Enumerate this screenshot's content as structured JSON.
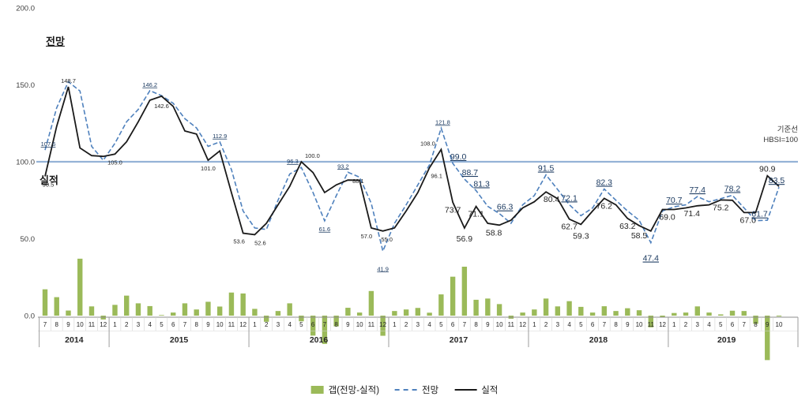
{
  "annotations": {
    "forecast": "전망",
    "actual": "실적",
    "baseline_line1": "기준선",
    "baseline_line2": "HBSI=100"
  },
  "legend": {
    "items": [
      {
        "label": "갭(전망-실적)",
        "swatch": "bar"
      },
      {
        "label": "전망",
        "swatch": "dashed-line"
      },
      {
        "label": "실적",
        "swatch": "solid-line"
      }
    ]
  },
  "colors": {
    "gap_bar": "#9bba59",
    "forecast_line": "#4f81bd",
    "actual_line": "#1a1a1a",
    "baseline": "#95b3d7"
  },
  "chart_data": {
    "type": "line",
    "title": "",
    "ylim": [
      -35,
      210
    ],
    "y_ticks": [
      200,
      150,
      100,
      50,
      0
    ],
    "y_tick_labels": [
      "200.0",
      "150.0",
      "100.0",
      "50.0",
      "0.0"
    ],
    "grid": false,
    "legend_position": "bottom",
    "baseline": {
      "value": 100,
      "label": "기준선 HBSI=100",
      "color": "#95b3d7"
    },
    "x_years": [
      {
        "year": "2014",
        "months": [
          "7",
          "8",
          "9",
          "10",
          "11",
          "12"
        ]
      },
      {
        "year": "2015",
        "months": [
          "1",
          "2",
          "3",
          "4",
          "5",
          "6",
          "7",
          "8",
          "9",
          "10",
          "11",
          "12"
        ]
      },
      {
        "year": "2016",
        "months": [
          "1",
          "2",
          "3",
          "4",
          "5",
          "6",
          "7",
          "8",
          "9",
          "10",
          "11",
          "12"
        ]
      },
      {
        "year": "2017",
        "months": [
          "1",
          "2",
          "3",
          "4",
          "5",
          "6",
          "7",
          "8",
          "9",
          "10",
          "11",
          "12"
        ]
      },
      {
        "year": "2018",
        "months": [
          "1",
          "2",
          "3",
          "4",
          "5",
          "6",
          "7",
          "8",
          "9",
          "10",
          "11",
          "12"
        ]
      },
      {
        "year": "2019",
        "months": [
          "1",
          "2",
          "3",
          "4",
          "5",
          "6",
          "7",
          "8",
          "9",
          "10"
        ]
      }
    ],
    "series": [
      {
        "name": "갭(전망-실적)",
        "type": "bar",
        "color": "#9bba59",
        "values": [
          17.1,
          12.0,
          3.3,
          37.0,
          6.0,
          -2.5,
          7.0,
          13.0,
          8.0,
          6.2,
          0.4,
          2.0,
          8.0,
          4.0,
          9.0,
          5.9,
          15.0,
          14.4,
          4.4,
          -4.0,
          3.0,
          8.0,
          -3.7,
          -13.0,
          -18.4,
          -7.0,
          5.1,
          2.0,
          16.0,
          -13.1,
          3.0,
          4.0,
          5.0,
          1.9,
          13.8,
          25.3,
          31.8,
          10.3,
          11.1,
          7.5,
          -2.0,
          2.0,
          4.0,
          11.1,
          6.0,
          9.4,
          5.7,
          2.0,
          6.1,
          3.0,
          4.8,
          3.5,
          -7.6,
          -1.0,
          1.7,
          2.0,
          6.0,
          2.0,
          0.8,
          3.2,
          3.0,
          -5.3,
          -28.9,
          -0.5
        ]
      },
      {
        "name": "전망",
        "type": "line",
        "dash": true,
        "color": "#4f81bd",
        "values": [
          107.6,
          135,
          152,
          146,
          110,
          101,
          112,
          126,
          134,
          146.2,
          143,
          138,
          128,
          122,
          110,
          112.9,
          95,
          68,
          57,
          56,
          75,
          92,
          96.3,
          80,
          61.6,
          78,
          93.2,
          90,
          73,
          41.9,
          60,
          72,
          85,
          98,
          121.8,
          99,
          88.7,
          81.3,
          71.1,
          66.3,
          60,
          72,
          78,
          91.5,
          82,
          72.1,
          65,
          70,
          82.3,
          75,
          68,
          62,
          47.4,
          68,
          70.7,
          72,
          77.4,
          74,
          76,
          78.2,
          70,
          61.7,
          62,
          83.5
        ]
      },
      {
        "name": "실적",
        "type": "line",
        "dash": false,
        "color": "#1a1a1a",
        "values": [
          90.5,
          123,
          148.7,
          109,
          104,
          103.5,
          105,
          113,
          126,
          140,
          142.6,
          136,
          120,
          118,
          101,
          107,
          80,
          53.6,
          52.6,
          60,
          72,
          84,
          100,
          93,
          80,
          85,
          88.1,
          88,
          57,
          55,
          57,
          68,
          80,
          96.1,
          108,
          73.7,
          56.9,
          71,
          60,
          58.8,
          62,
          70,
          74,
          80.4,
          76,
          62.7,
          59.3,
          68,
          76.2,
          72,
          63.2,
          58.5,
          55,
          69,
          69,
          70,
          71.4,
          72,
          75.2,
          75,
          67,
          67,
          90.9,
          84
        ]
      }
    ],
    "point_labels": [
      {
        "i": 0,
        "v": 107.6,
        "t": "107.6",
        "u": true,
        "pos": "above",
        "dx": 4
      },
      {
        "i": 0,
        "v": 90.5,
        "t": "90.5",
        "u": false,
        "pos": "below",
        "dx": 4
      },
      {
        "i": 2,
        "v": 148.7,
        "t": "148.7",
        "u": false,
        "pos": "above"
      },
      {
        "i": 6,
        "v": 105.0,
        "t": "105.0",
        "u": false,
        "pos": "below"
      },
      {
        "i": 9,
        "v": 146.2,
        "t": "146.2",
        "u": true,
        "pos": "above"
      },
      {
        "i": 10,
        "v": 142.6,
        "t": "142.6",
        "u": false,
        "pos": "below",
        "dy": 2
      },
      {
        "i": 14,
        "v": 101.0,
        "t": "101.0",
        "u": false,
        "pos": "below"
      },
      {
        "i": 15,
        "v": 112.9,
        "t": "112.9",
        "u": true,
        "pos": "above"
      },
      {
        "i": 17,
        "v": 53.6,
        "t": "53.6",
        "u": false,
        "pos": "below",
        "dx": -5
      },
      {
        "i": 18,
        "v": 52.6,
        "t": "52.6",
        "u": false,
        "pos": "below",
        "dx": 7
      },
      {
        "i": 22,
        "v": 96.3,
        "t": "96.3",
        "u": true,
        "pos": "above",
        "dx": -11
      },
      {
        "i": 22,
        "v": 100.0,
        "t": "100.0",
        "u": false,
        "pos": "above",
        "dx": 14
      },
      {
        "i": 24,
        "v": 61.6,
        "t": "61.6",
        "u": true,
        "pos": "below"
      },
      {
        "i": 26,
        "v": 93.2,
        "t": "93.2",
        "u": true,
        "pos": "above",
        "dx": -6
      },
      {
        "i": 26,
        "v": 88.1,
        "t": "88.1",
        "u": false,
        "pos": "above",
        "dx": 13,
        "dy": 9
      },
      {
        "i": 28,
        "v": 57.0,
        "t": "57.0",
        "u": false,
        "pos": "below",
        "dx": -6
      },
      {
        "i": 29,
        "v": 55.0,
        "t": "55.0",
        "u": false,
        "pos": "below",
        "dx": 5
      },
      {
        "i": 29,
        "v": 41.9,
        "t": "41.9",
        "u": true,
        "pos": "below",
        "dy": 12
      },
      {
        "i": 33,
        "v": 96.1,
        "t": "96.1",
        "u": false,
        "pos": "below",
        "dx": 9
      },
      {
        "i": 34,
        "v": 108.0,
        "t": "108.0",
        "u": false,
        "pos": "above",
        "dx": -17
      },
      {
        "i": 34,
        "v": 121.8,
        "t": "121.8",
        "u": true,
        "pos": "above",
        "dx": 2
      },
      {
        "i": 35,
        "v": 99.0,
        "t": "99.0",
        "u": true,
        "pos": "above",
        "dx": 7,
        "big": true
      },
      {
        "i": 36,
        "v": 88.7,
        "t": "88.7",
        "u": true,
        "pos": "above",
        "dx": 7,
        "big": true
      },
      {
        "i": 35,
        "v": 73.7,
        "t": "73.7",
        "u": false,
        "pos": "below",
        "big": true
      },
      {
        "i": 36,
        "v": 56.9,
        "t": "56.9",
        "u": false,
        "pos": "below",
        "dy": 4,
        "big": true
      },
      {
        "i": 37,
        "v": 81.3,
        "t": "81.3",
        "u": true,
        "pos": "above",
        "dx": 7,
        "big": true
      },
      {
        "i": 37,
        "v": 71.1,
        "t": "71.1",
        "u": false,
        "pos": "below",
        "big": true
      },
      {
        "i": 39,
        "v": 66.3,
        "t": "66.3",
        "u": true,
        "pos": "above",
        "dx": 7,
        "big": true
      },
      {
        "i": 39,
        "v": 58.8,
        "t": "58.8",
        "u": false,
        "pos": "below",
        "dx": -7,
        "big": true
      },
      {
        "i": 43,
        "v": 91.5,
        "t": "91.5",
        "u": true,
        "pos": "above",
        "big": true
      },
      {
        "i": 43,
        "v": 80.4,
        "t": "80.4",
        "u": false,
        "pos": "below",
        "dx": 7,
        "big": true
      },
      {
        "i": 45,
        "v": 72.1,
        "t": "72.1",
        "u": true,
        "pos": "above",
        "big": true
      },
      {
        "i": 45,
        "v": 62.7,
        "t": "62.7",
        "u": false,
        "pos": "below",
        "big": true
      },
      {
        "i": 46,
        "v": 59.3,
        "t": "59.3",
        "u": false,
        "pos": "below",
        "dy": 5,
        "big": true
      },
      {
        "i": 48,
        "v": 82.3,
        "t": "82.3",
        "u": true,
        "pos": "above",
        "big": true
      },
      {
        "i": 48,
        "v": 76.2,
        "t": "76.2",
        "u": false,
        "pos": "below",
        "big": true
      },
      {
        "i": 50,
        "v": 63.2,
        "t": "63.2",
        "u": false,
        "pos": "below",
        "big": true
      },
      {
        "i": 51,
        "v": 58.5,
        "t": "58.5",
        "u": false,
        "pos": "below",
        "dy": 3,
        "big": true
      },
      {
        "i": 52,
        "v": 47.4,
        "t": "47.4",
        "u": true,
        "pos": "below",
        "dy": 10,
        "big": true
      },
      {
        "i": 53,
        "v": 69.0,
        "t": "69.0",
        "u": false,
        "pos": "below",
        "dx": 6,
        "big": true
      },
      {
        "i": 54,
        "v": 70.7,
        "t": "70.7",
        "u": true,
        "pos": "above",
        "big": true
      },
      {
        "i": 56,
        "v": 77.4,
        "t": "77.4",
        "u": true,
        "pos": "above",
        "big": true
      },
      {
        "i": 56,
        "v": 71.4,
        "t": "71.4",
        "u": false,
        "pos": "below",
        "dx": -7,
        "big": true
      },
      {
        "i": 58,
        "v": 75.2,
        "t": "75.2",
        "u": false,
        "pos": "below",
        "big": true
      },
      {
        "i": 59,
        "v": 78.2,
        "t": "78.2",
        "u": true,
        "pos": "above",
        "big": true
      },
      {
        "i": 60,
        "v": 67.0,
        "t": "67.0",
        "u": false,
        "pos": "below",
        "dx": 5,
        "big": true
      },
      {
        "i": 61,
        "v": 61.7,
        "t": "61.7",
        "u": true,
        "pos": "above",
        "dx": 5,
        "big": true
      },
      {
        "i": 62,
        "v": 90.9,
        "t": "90.9",
        "u": false,
        "pos": "above",
        "big": true
      },
      {
        "i": 63,
        "v": 83.5,
        "t": "83.5",
        "u": true,
        "pos": "above",
        "dx": -3,
        "big": true
      }
    ]
  }
}
